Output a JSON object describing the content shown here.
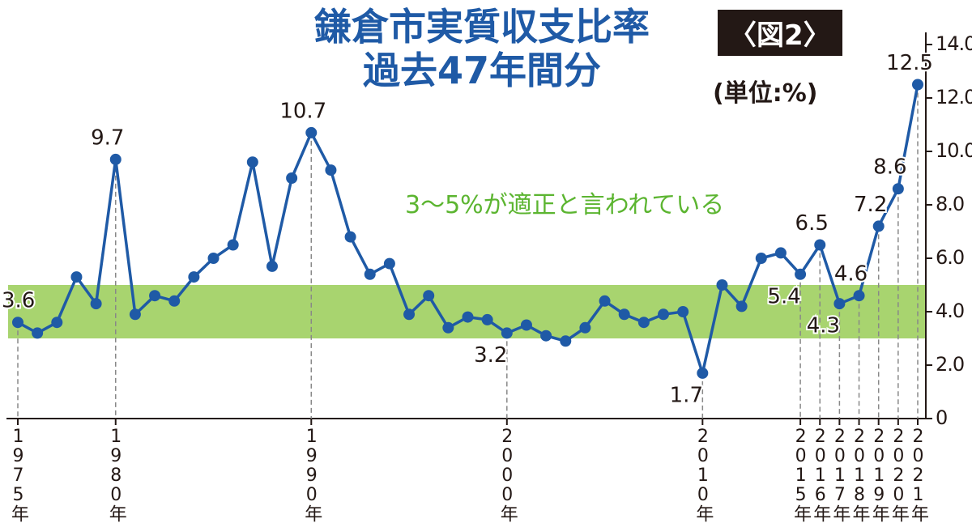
{
  "title": "鎌倉市実質収支比率",
  "subtitle": "過去47年間分",
  "badge": "〈図2〉",
  "unit": "(単位:%)",
  "chart_data": {
    "type": "line",
    "color": "#1f5aa6",
    "annotation": "3〜5%が適正と言われている",
    "band": [
      3,
      5
    ],
    "band_color": "#a8d46f",
    "categories": [
      "1975年",
      null,
      null,
      null,
      null,
      "1980年",
      null,
      null,
      null,
      null,
      null,
      null,
      null,
      null,
      null,
      "1990年",
      null,
      null,
      null,
      null,
      null,
      null,
      null,
      null,
      null,
      "2000年",
      null,
      null,
      null,
      null,
      null,
      null,
      null,
      null,
      null,
      "2010年",
      null,
      null,
      null,
      null,
      "2015年",
      "2016年",
      "2017年",
      "2018年",
      "2019年",
      "2020年",
      "2021年"
    ],
    "values": [
      3.6,
      3.2,
      3.6,
      5.3,
      4.3,
      9.7,
      3.9,
      4.6,
      4.4,
      5.3,
      6.0,
      6.5,
      9.6,
      5.7,
      9.0,
      10.7,
      9.3,
      6.8,
      5.4,
      5.8,
      3.9,
      4.6,
      3.4,
      3.8,
      3.7,
      3.2,
      3.5,
      3.1,
      2.9,
      3.4,
      4.4,
      3.9,
      3.6,
      3.9,
      4.0,
      1.7,
      5.0,
      4.2,
      6.0,
      6.2,
      5.4,
      6.5,
      4.3,
      4.6,
      7.2,
      8.6,
      12.5
    ],
    "value_labels": [
      "3.6",
      null,
      null,
      null,
      null,
      "9.7",
      null,
      null,
      null,
      null,
      null,
      null,
      null,
      null,
      null,
      "10.7",
      null,
      null,
      null,
      null,
      null,
      null,
      null,
      null,
      null,
      "3.2",
      null,
      null,
      null,
      null,
      null,
      null,
      null,
      null,
      null,
      "1.7",
      null,
      null,
      null,
      null,
      "5.4",
      "6.5",
      "4.3",
      "4.6",
      "7.2",
      "8.6",
      "12.5"
    ],
    "ylim": [
      0,
      14
    ],
    "yticks": [
      0,
      {
        "value": 2,
        "label": "2.0"
      },
      {
        "value": 4,
        "label": "4.0"
      },
      {
        "value": 6,
        "label": "6.0"
      },
      {
        "value": 8,
        "label": "8.0"
      },
      {
        "value": 10,
        "label": "10.0"
      },
      {
        "value": 12,
        "label": "12.0"
      },
      {
        "value": 14,
        "label": "14.0"
      }
    ]
  }
}
